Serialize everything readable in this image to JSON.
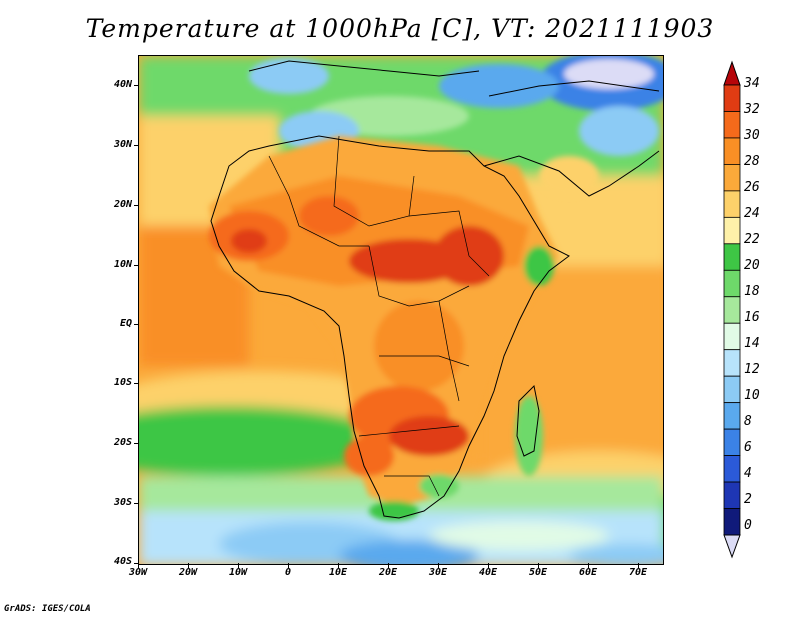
{
  "title": "Temperature at 1000hPa [C], VT: 2021111903",
  "credit": "GrADS: IGES/COLA",
  "map": {
    "variable": "Temperature",
    "level": "1000hPa",
    "units": "C",
    "valid_time": "2021111903",
    "lat_labels": [
      "40N",
      "30N",
      "20N",
      "10N",
      "EQ",
      "10S",
      "20S",
      "30S",
      "40S"
    ],
    "lon_labels": [
      "30W",
      "20W",
      "10W",
      "0",
      "10E",
      "20E",
      "30E",
      "40E",
      "50E",
      "60E",
      "70E"
    ],
    "lat_range": [
      -40,
      45
    ],
    "lon_range": [
      -30,
      75
    ]
  },
  "colorbar": {
    "labels": [
      "34",
      "32",
      "30",
      "28",
      "26",
      "24",
      "22",
      "20",
      "18",
      "16",
      "14",
      "12",
      "10",
      "8",
      "6",
      "4",
      "2",
      "0"
    ],
    "colors": [
      "#b7050a",
      "#e03c13",
      "#f56a1b",
      "#f98f25",
      "#fba93a",
      "#fdd16a",
      "#fef1a9",
      "#3ec645",
      "#6ed96a",
      "#a6e89c",
      "#e1fbe6",
      "#b7e3fb",
      "#8ccbf5",
      "#5aa9ee",
      "#3b82e6",
      "#2b5ad8",
      "#1e36b4",
      "#101a7a",
      "#dcdcf6"
    ]
  }
}
